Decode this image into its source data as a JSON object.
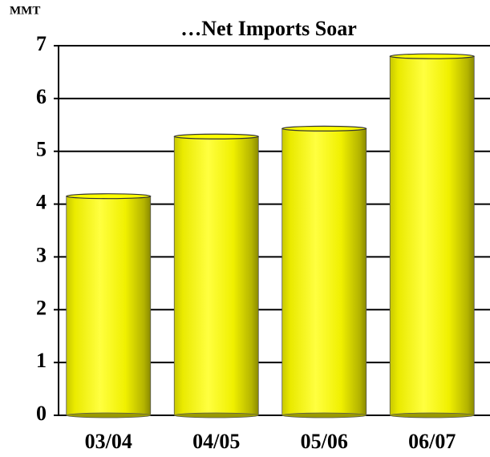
{
  "chart_data": {
    "type": "bar",
    "title": "…Net Imports Soar",
    "y_label": "MMT",
    "categories": [
      "03/04",
      "04/05",
      "05/06",
      "06/07"
    ],
    "values": [
      4.15,
      5.28,
      5.43,
      6.8
    ],
    "color": "#ffff00",
    "ylim": [
      0,
      7
    ],
    "yticks": [
      0,
      1,
      2,
      3,
      4,
      5,
      6,
      7
    ],
    "grid": true
  }
}
